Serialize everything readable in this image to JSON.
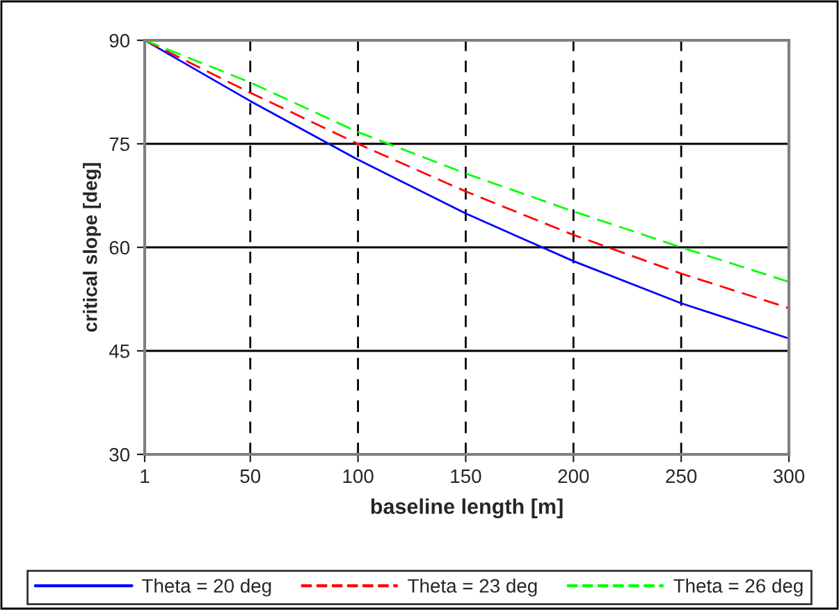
{
  "chart_data": {
    "type": "line",
    "xlabel": "baseline length [m]",
    "ylabel": "critical slope [deg]",
    "x": [
      1,
      50,
      100,
      150,
      200,
      250,
      300
    ],
    "series": [
      {
        "name": "Theta = 20 deg",
        "color": "#0000ff",
        "line_style": "solid",
        "values": [
          90,
          81.2,
          72.7,
          64.9,
          58.0,
          51.9,
          46.8
        ]
      },
      {
        "name": "Theta = 23 deg",
        "color": "#ff0000",
        "line_style": "dashed",
        "values": [
          90,
          82.4,
          75.0,
          68.1,
          61.8,
          56.2,
          51.2
        ]
      },
      {
        "name": "Theta = 26 deg",
        "color": "#00ff00",
        "line_style": "dashed",
        "values": [
          90,
          83.9,
          76.7,
          70.7,
          65.2,
          60.0,
          55.0
        ]
      }
    ],
    "xlim": [
      1,
      300
    ],
    "xticks": [
      1,
      50,
      100,
      150,
      200,
      250,
      300
    ],
    "ylim": [
      30,
      90
    ],
    "yticks": [
      30,
      45,
      60,
      75,
      90
    ],
    "grid": true,
    "legend": "bottom",
    "marker": "none"
  }
}
